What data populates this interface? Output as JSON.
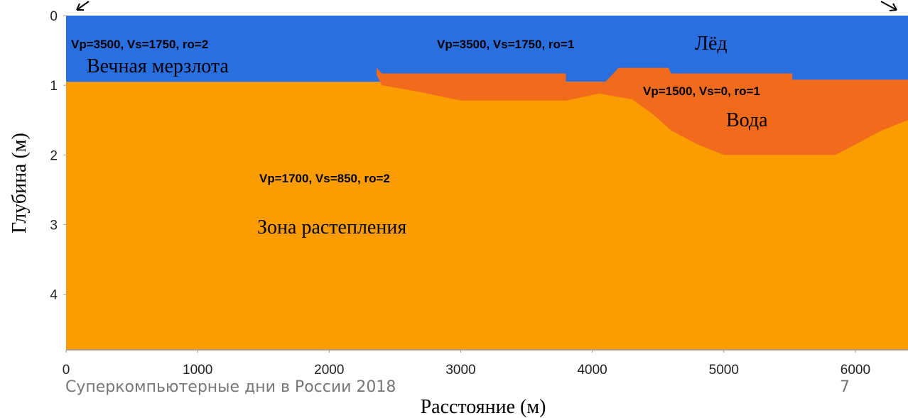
{
  "chart_data": {
    "type": "section",
    "xlabel": "Расстояние (м)",
    "ylabel": "Глубина (м)",
    "xlim": [
      0,
      6400
    ],
    "ylim": [
      0,
      4.8
    ],
    "xticks": [
      0,
      1000,
      2000,
      3000,
      4000,
      5000,
      6000
    ],
    "yticks": [
      0,
      1,
      2,
      3,
      4
    ],
    "layers": [
      {
        "color": "#fb9c00",
        "x": [
          0,
          6400,
          6400,
          0
        ],
        "y": [
          0.95,
          0.95,
          4.8,
          4.8
        ]
      },
      {
        "color": "#2a6fe0",
        "x": [
          0,
          6400,
          6400,
          0
        ],
        "y": [
          0,
          0,
          0.95,
          0.95
        ]
      },
      {
        "color": "#f26a1b",
        "x": [
          2360,
          2400,
          3800,
          3800,
          4100,
          4200,
          4580,
          4600,
          5520,
          5520,
          6400,
          6400,
          6200,
          6000,
          5850,
          5000,
          4800,
          4600,
          4450,
          4300,
          4050,
          3800,
          3000,
          2700,
          2400,
          2360
        ],
        "y": [
          0.75,
          0.83,
          0.83,
          0.95,
          0.95,
          0.75,
          0.75,
          0.83,
          0.83,
          0.92,
          0.92,
          1.5,
          1.65,
          1.85,
          2.0,
          2.0,
          1.85,
          1.65,
          1.4,
          1.2,
          1.12,
          1.22,
          1.22,
          1.1,
          1.0,
          0.85
        ]
      }
    ],
    "annotations": [
      "Vp=3500, Vs=1750, ro=2",
      "Вечная мерзлота",
      "Vp=3500, Vs=1750, ro=1",
      "Лёд",
      "Vp=1500, Vs=0, ro=1",
      "Вода",
      "Vp=1700, Vs=850, ro=2",
      "Зона растепления"
    ]
  },
  "footer": {
    "text": "Суперкомпьютерные дни в России 2018",
    "page": "7"
  }
}
